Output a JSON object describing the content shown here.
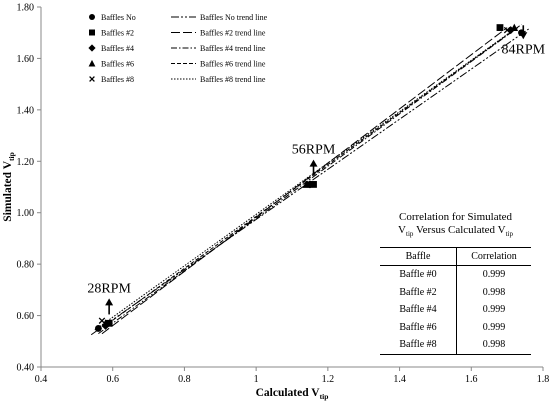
{
  "chart_data": {
    "type": "scatter",
    "xlabel": "Calculated V",
    "xlabel_sub": "tip",
    "ylabel": "Simulated V",
    "ylabel_sub": "tip",
    "xlim": [
      0.4,
      1.8
    ],
    "ylim": [
      0.4,
      1.8
    ],
    "xticks": [
      0.4,
      0.6,
      0.8,
      1,
      1.2,
      1.4,
      1.6,
      1.8
    ],
    "xtick_labels": [
      "0.4",
      "0.6",
      "0.8",
      "1",
      "1.2",
      "1.4",
      "1.6",
      "1.8"
    ],
    "yticks": [
      0.4,
      0.6,
      0.8,
      1.0,
      1.2,
      1.4,
      1.6,
      1.8
    ],
    "ytick_labels": [
      "0.40",
      "0.60",
      "0.80",
      "1.00",
      "1.20",
      "1.40",
      "1.60",
      "1.80"
    ],
    "grid": false,
    "legend_position": "top-left",
    "series": [
      {
        "name": "Baffles No",
        "marker": "circle",
        "trend_name": "Baffles No trend line",
        "trend_dash": "8 2 2 2 2 2",
        "x": [
          0.56,
          1.15,
          1.74
        ],
        "y": [
          0.55,
          1.11,
          1.7
        ]
      },
      {
        "name": "Baffles #2",
        "marker": "square",
        "trend_name": "Baffles #2 trend line",
        "trend_dash": "9 3",
        "x": [
          0.59,
          1.16,
          1.68
        ],
        "y": [
          0.57,
          1.11,
          1.72
        ]
      },
      {
        "name": "Baffles #4",
        "marker": "diamond",
        "trend_name": "Baffles #4 trend line",
        "trend_dash": "6 2 1.5 2",
        "x": [
          0.58,
          1.15,
          1.71
        ],
        "y": [
          0.56,
          1.11,
          1.71
        ]
      },
      {
        "name": "Baffles #6",
        "marker": "triangle",
        "trend_name": "Baffles #6 trend line",
        "trend_dash": "4 2",
        "x": [
          0.58,
          1.14,
          1.72
        ],
        "y": [
          0.57,
          1.11,
          1.72
        ]
      },
      {
        "name": "Baffles #8",
        "marker": "x",
        "trend_name": "Baffles #8 trend line",
        "trend_dash": "1.5 1.5",
        "x": [
          0.57,
          1.15,
          1.7
        ],
        "y": [
          0.58,
          1.11,
          1.71
        ]
      }
    ],
    "annotations": [
      {
        "text": "28RPM",
        "arrow": "up",
        "x": 0.59,
        "y": 0.69
      },
      {
        "text": "56RPM",
        "arrow": "up",
        "x": 1.16,
        "y": 1.23
      },
      {
        "text": "84RPM",
        "arrow": "down",
        "x": 1.745,
        "y": 1.62
      }
    ]
  },
  "correlation_table": {
    "title_line1": "Correlation for Simulated",
    "title_line2_a": "V",
    "title_line2_a_sub": "tip",
    "title_line2_b": " Versus Calculated V",
    "title_line2_b_sub": "tip",
    "headers": [
      "Baffle",
      "Correlation"
    ],
    "rows": [
      [
        "Baffle #0",
        "0.999"
      ],
      [
        "Baffle #2",
        "0.998"
      ],
      [
        "Baffle #4",
        "0.999"
      ],
      [
        "Baffle #6",
        "0.999"
      ],
      [
        "Baffle #8",
        "0.998"
      ]
    ]
  }
}
